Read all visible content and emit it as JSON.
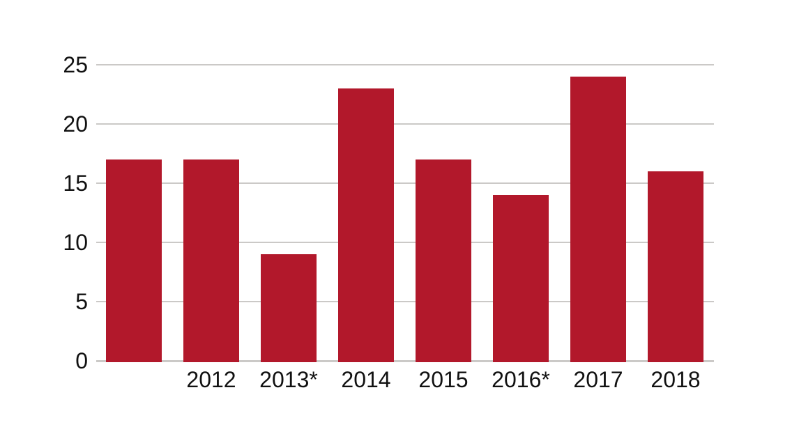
{
  "chart_data": {
    "type": "bar",
    "categories": [
      "",
      "2012",
      "2013*",
      "2014",
      "2015",
      "2016*",
      "2017",
      "2018"
    ],
    "values": [
      17,
      17,
      9,
      23,
      17,
      14,
      24,
      16
    ],
    "title": "",
    "xlabel": "",
    "ylabel": "",
    "ylim": [
      0,
      25
    ],
    "yticks": [
      0,
      5,
      10,
      15,
      20,
      25
    ],
    "grid": true,
    "legend": false,
    "colors": {
      "bar": "#B2182B",
      "gridline": "#CBC9C7",
      "text": "#111111",
      "background": "#FFFFFF"
    }
  }
}
